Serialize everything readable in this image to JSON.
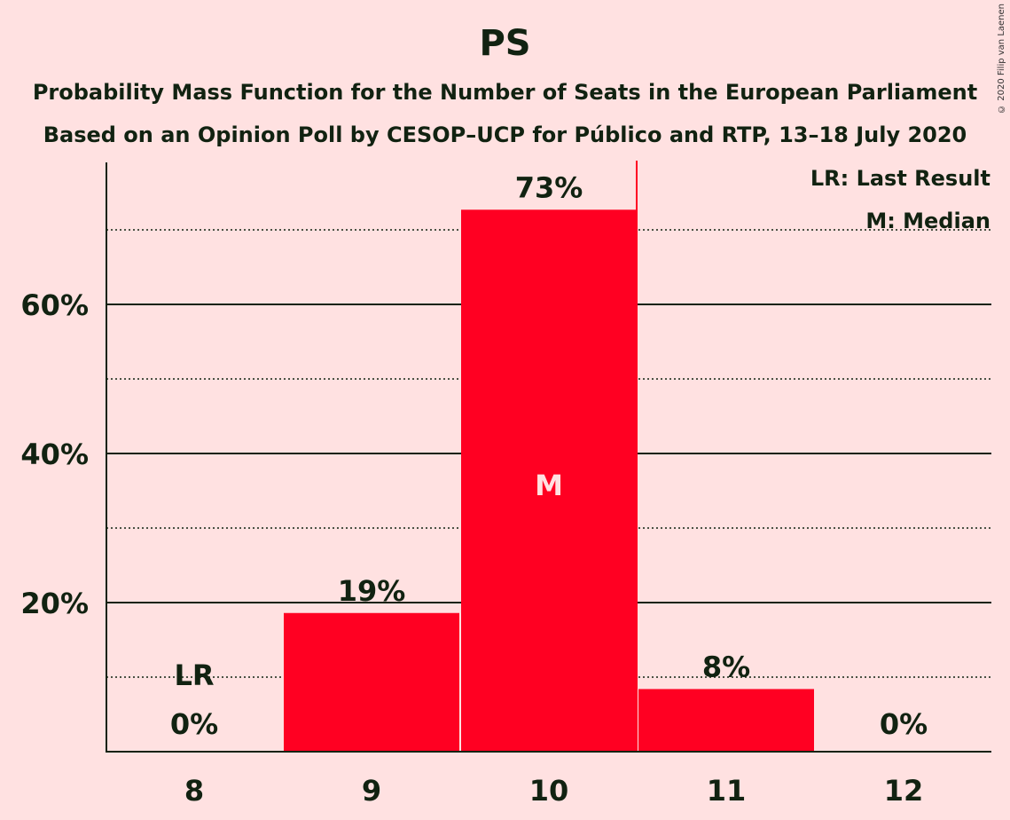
{
  "copyright": "© 2020 Filip van Laenen",
  "chart_data": {
    "type": "bar",
    "title": "PS",
    "subtitle_lines": [
      "Probability Mass Function for the Number of Seats in the European Parliament",
      "Based on an Opinion Poll by CESOP–UCP for Público and RTP, 13–18 July 2020"
    ],
    "categories": [
      "8",
      "9",
      "10",
      "11",
      "12"
    ],
    "values": [
      0,
      18.6,
      72.7,
      8.4,
      0
    ],
    "value_labels": [
      "0%",
      "19%",
      "73%",
      "8%",
      "0%"
    ],
    "ylim": [
      0,
      79
    ],
    "yticks": [
      20,
      40,
      60
    ],
    "ytick_labels": [
      "20%",
      "40%",
      "60%"
    ],
    "dotted_gridlines": [
      10,
      30,
      50,
      70
    ],
    "last_result": {
      "category": "8",
      "label": "LR"
    },
    "median": {
      "category": "10",
      "label": "M"
    },
    "legend": [
      "LR: Last Result",
      "M: Median"
    ],
    "bar_color": "#FF0022",
    "background": "#FFE1E1",
    "text_color": "#112211"
  }
}
